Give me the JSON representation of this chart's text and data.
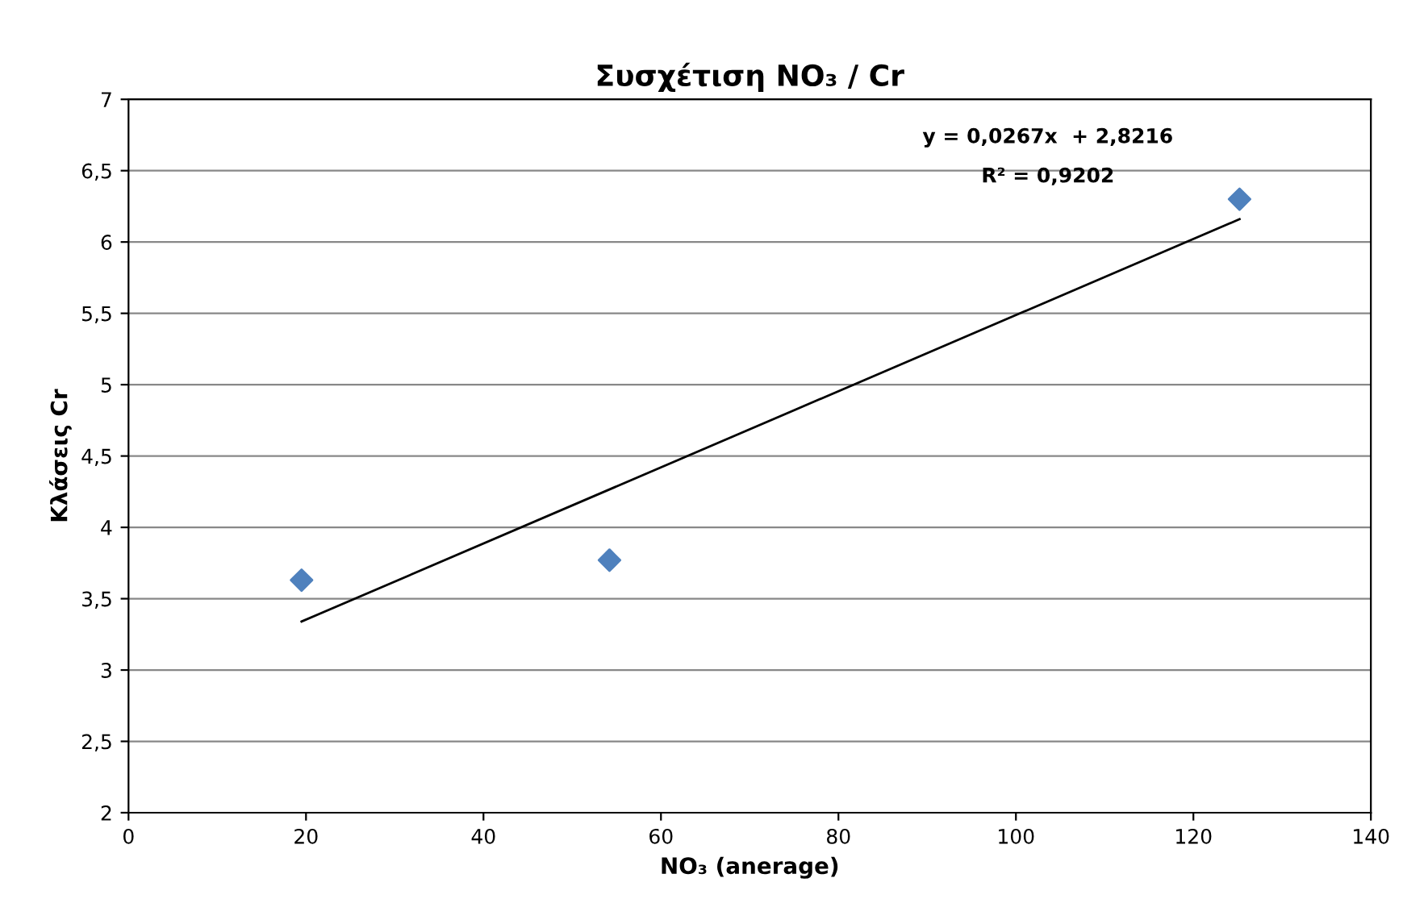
{
  "chart_data": {
    "type": "scatter",
    "title": "Συσχέτιση NO₃ / Cr",
    "xlabel": "NO₃ (anerage)",
    "ylabel": "Κλάσεις Cr",
    "xlim": [
      0,
      140
    ],
    "xticks": [
      0,
      20,
      40,
      60,
      80,
      100,
      120,
      140
    ],
    "ylim": [
      2,
      7
    ],
    "yticks": [
      2,
      {
        "value": 2.5,
        "label": "2,5"
      },
      3,
      {
        "value": 3.5,
        "label": "3,5"
      },
      4,
      {
        "value": 4.5,
        "label": "4,5"
      },
      5,
      {
        "value": 5.5,
        "label": "5,5"
      },
      6,
      {
        "value": 6.5,
        "label": "6,5"
      },
      7
    ],
    "grid": "y",
    "series": [
      {
        "color": "#4f81bd",
        "marker": "diamond",
        "x": [
          19.5,
          54.2,
          125.2
        ],
        "values": [
          3.63,
          3.77,
          6.3
        ]
      },
      {
        "type": "line",
        "marker": "none",
        "color": "#000000",
        "x": [
          19.5,
          125.2
        ],
        "values": [
          3.34,
          6.16
        ]
      }
    ],
    "annotations": [
      "y = 0,0267x  + 2,8216",
      "R² = 0,9202"
    ]
  }
}
